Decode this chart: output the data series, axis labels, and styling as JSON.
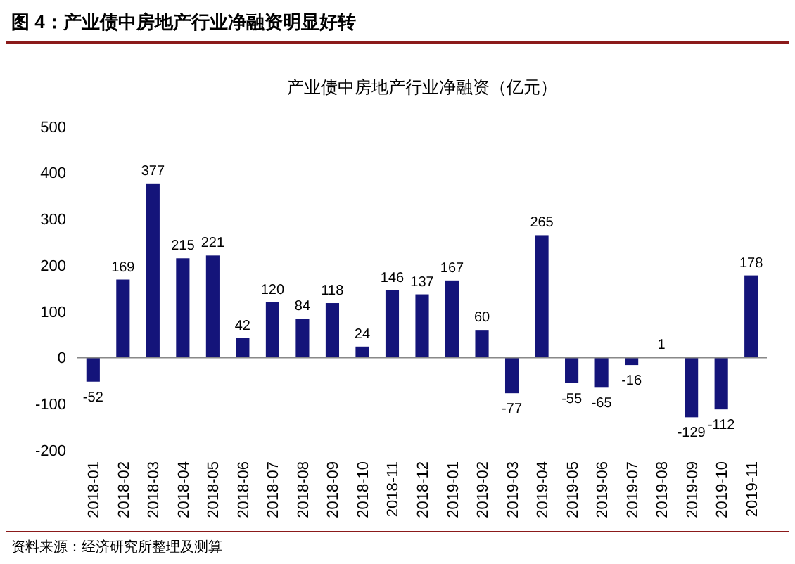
{
  "chart_data": {
    "type": "bar",
    "title": "图 4：产业债中房地产行业净融资明显好转",
    "subtitle": "产业债中房地产行业净融资（亿元）",
    "categories": [
      "2018-01",
      "2018-02",
      "2018-03",
      "2018-04",
      "2018-05",
      "2018-06",
      "2018-07",
      "2018-08",
      "2018-09",
      "2018-10",
      "2018-11",
      "2018-12",
      "2019-01",
      "2019-02",
      "2019-03",
      "2019-04",
      "2019-05",
      "2019-06",
      "2019-07",
      "2019-08",
      "2019-09",
      "2019-10",
      "2019-11"
    ],
    "values": [
      -52,
      169,
      377,
      215,
      221,
      42,
      120,
      84,
      118,
      24,
      146,
      137,
      167,
      60,
      -77,
      265,
      -55,
      -65,
      -16,
      1,
      -129,
      -112,
      178
    ],
    "color": "#14147a",
    "ylim": [
      -200,
      500
    ],
    "yticks": [
      -200,
      -100,
      0,
      100,
      200,
      300,
      400,
      500
    ],
    "data_labels": true,
    "annotations": [
      "资料来源：经济研究所整理及测算"
    ]
  }
}
